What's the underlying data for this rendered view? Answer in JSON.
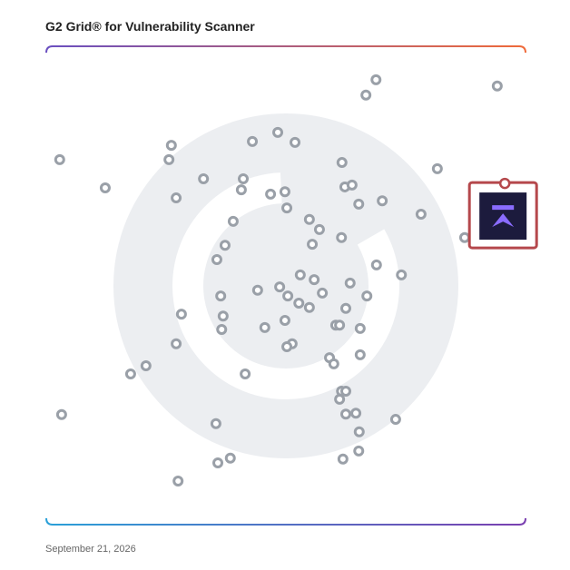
{
  "chart_data": {
    "type": "scatter",
    "title": "G2 Grid® for Vulnerability Scanner",
    "date": "September 21, 2026",
    "xlim": [
      0,
      100
    ],
    "ylim": [
      0,
      100
    ],
    "color": "#9aa0a8",
    "x": [
      68.8,
      66.7,
      94.1,
      2.8,
      12.3,
      26.1,
      25.6,
      43.0,
      48.3,
      51.9,
      61.7,
      81.6,
      32.8,
      41.1,
      40.7,
      27.1,
      46.8,
      49.8,
      50.2,
      62.3,
      63.8,
      65.2,
      70.1,
      78.2,
      54.9,
      57.0,
      39.0,
      37.3,
      55.5,
      61.6,
      35.6,
      87.3,
      68.9,
      74.1,
      53.0,
      55.9,
      63.4,
      48.7,
      44.1,
      50.4,
      57.6,
      66.9,
      36.4,
      52.7,
      54.9,
      62.5,
      28.2,
      36.9,
      49.8,
      36.6,
      45.6,
      60.4,
      61.2,
      65.5,
      27.1,
      51.3,
      50.2,
      59.1,
      60.0,
      65.5,
      20.8,
      17.6,
      41.5,
      61.6,
      62.5,
      61.2,
      3.2,
      62.5,
      64.6,
      72.9,
      35.4,
      65.3,
      38.4,
      35.8,
      65.2,
      61.9,
      27.5
    ],
    "y": [
      93.0,
      89.8,
      91.7,
      76.3,
      70.4,
      79.3,
      76.3,
      80.1,
      82.0,
      79.9,
      75.7,
      74.4,
      72.3,
      72.3,
      70.0,
      68.3,
      69.1,
      69.6,
      66.2,
      70.6,
      71.0,
      67.0,
      67.7,
      64.9,
      63.8,
      61.7,
      63.4,
      58.4,
      58.6,
      60.0,
      55.4,
      60.0,
      54.3,
      52.2,
      52.2,
      51.2,
      50.5,
      49.7,
      49.0,
      47.8,
      48.4,
      47.8,
      47.8,
      46.3,
      45.4,
      45.2,
      44.0,
      43.6,
      42.7,
      40.8,
      41.2,
      41.7,
      41.7,
      41.0,
      37.8,
      37.8,
      37.2,
      34.9,
      33.6,
      35.5,
      33.2,
      31.5,
      31.5,
      27.9,
      27.9,
      26.2,
      23.0,
      23.1,
      23.3,
      22.0,
      21.1,
      19.4,
      13.9,
      12.9,
      15.4,
      13.7,
      9.1
    ],
    "highlight": {
      "x": 95.3,
      "y": 64.5
    }
  }
}
